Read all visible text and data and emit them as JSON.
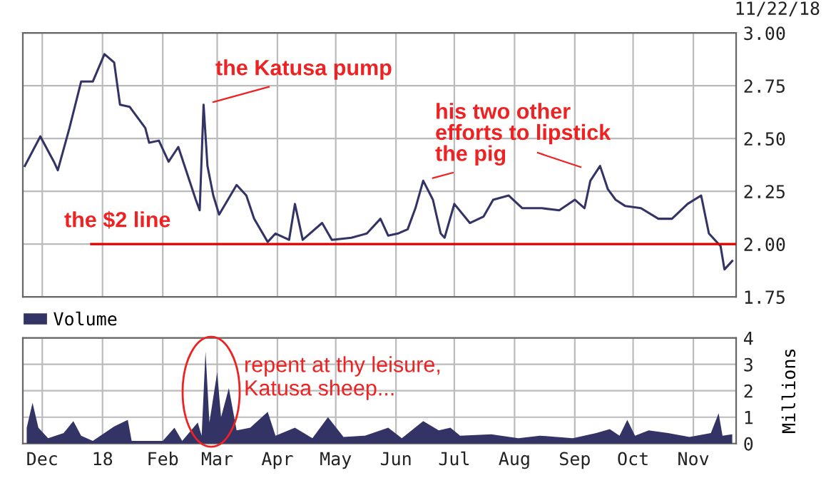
{
  "chart_data": [
    {
      "type": "line",
      "x": [
        "2017-11-22",
        "2017-11-30",
        "2017-12-07",
        "2017-12-09",
        "2017-12-15",
        "2017-12-21",
        "2017-12-27",
        "2018-01-02",
        "2018-01-07",
        "2018-01-10",
        "2018-01-15",
        "2018-01-23",
        "2018-01-25",
        "2018-01-30",
        "2018-02-04",
        "2018-02-09",
        "2018-02-18",
        "2018-02-20",
        "2018-02-22",
        "2018-02-24",
        "2018-02-27",
        "2018-03-02",
        "2018-03-11",
        "2018-03-16",
        "2018-03-20",
        "2018-03-27",
        "2018-03-31",
        "2018-04-07",
        "2018-04-10",
        "2018-04-14",
        "2018-04-24",
        "2018-04-29",
        "2018-05-09",
        "2018-05-17",
        "2018-05-24",
        "2018-05-28",
        "2018-06-02",
        "2018-06-07",
        "2018-06-11",
        "2018-06-15",
        "2018-06-20",
        "2018-06-24",
        "2018-06-26",
        "2018-07-01",
        "2018-07-09",
        "2018-07-16",
        "2018-07-21",
        "2018-07-29",
        "2018-08-05",
        "2018-08-15",
        "2018-08-24",
        "2018-09-01",
        "2018-09-06",
        "2018-09-09",
        "2018-09-14",
        "2018-09-18",
        "2018-09-22",
        "2018-09-27",
        "2018-10-05",
        "2018-10-14",
        "2018-10-21",
        "2018-10-29",
        "2018-11-05",
        "2018-11-09",
        "2018-11-15",
        "2018-11-17",
        "2018-11-21"
      ],
      "series": [
        {
          "color": "#333366",
          "values": [
            2.37,
            2.51,
            2.39,
            2.35,
            2.55,
            2.77,
            2.77,
            2.9,
            2.86,
            2.66,
            2.65,
            2.55,
            2.48,
            2.49,
            2.39,
            2.46,
            2.21,
            2.16,
            2.66,
            2.37,
            2.23,
            2.14,
            2.28,
            2.23,
            2.12,
            2.01,
            2.05,
            2.02,
            2.19,
            2.02,
            2.1,
            2.02,
            2.03,
            2.05,
            2.12,
            2.04,
            2.05,
            2.07,
            2.17,
            2.3,
            2.21,
            2.05,
            2.03,
            2.19,
            2.1,
            2.13,
            2.21,
            2.23,
            2.17,
            2.17,
            2.16,
            2.21,
            2.17,
            2.3,
            2.37,
            2.26,
            2.21,
            2.18,
            2.17,
            2.12,
            2.12,
            2.19,
            2.23,
            2.05,
            1.99,
            1.88,
            1.92
          ]
        }
      ],
      "xlim": [
        "2017-11-21",
        "2018-11-23"
      ],
      "xticks": [
        {
          "value": "2017-12-01",
          "label": null
        },
        {
          "value": "2018-01-01",
          "label": null
        },
        {
          "value": "2018-02-01",
          "label": null
        },
        {
          "value": "2018-03-01",
          "label": null
        },
        {
          "value": "2018-04-01",
          "label": null
        },
        {
          "value": "2018-05-01",
          "label": null
        },
        {
          "value": "2018-06-01",
          "label": null
        },
        {
          "value": "2018-07-01",
          "label": null
        },
        {
          "value": "2018-08-01",
          "label": null
        },
        {
          "value": "2018-09-01",
          "label": null
        },
        {
          "value": "2018-10-01",
          "label": null
        },
        {
          "value": "2018-11-01",
          "label": null
        }
      ],
      "ylim": [
        1.75,
        3.0
      ],
      "yticks": [
        {
          "value": 1.75,
          "label": "1.75"
        },
        {
          "value": 2.0,
          "label": "2.00"
        },
        {
          "value": 2.25,
          "label": "2.25"
        },
        {
          "value": 2.5,
          "label": "2.50"
        },
        {
          "value": 2.75,
          "label": "2.75"
        },
        {
          "value": 3.0,
          "label": "3.00"
        }
      ],
      "tick_labels": "y",
      "grid": true,
      "ref_lines": [
        {
          "axis": "y",
          "value": 2.0,
          "label": "the $2 line",
          "color": "#dd0000"
        }
      ],
      "annotations": [
        {
          "text": "the Katusa pump",
          "x": "2018-02-22",
          "y": 2.66
        },
        {
          "text": "his two other\nefforts to lipstick\nthe pig",
          "x": "2018-06-15",
          "y": 2.3
        },
        "11/22/18"
      ]
    },
    {
      "type": "area",
      "x": [
        "2017-11-23",
        "2017-11-26",
        "2017-11-29",
        "2017-12-04",
        "2017-12-12",
        "2017-12-17",
        "2017-12-21",
        "2017-12-27",
        "2018-01-07",
        "2018-01-14",
        "2018-01-16",
        "2018-02-01",
        "2018-02-07",
        "2018-02-11",
        "2018-02-19",
        "2018-02-21",
        "2018-02-23",
        "2018-02-25",
        "2018-03-01",
        "2018-03-03",
        "2018-03-07",
        "2018-03-11",
        "2018-03-18",
        "2018-03-27",
        "2018-03-31",
        "2018-04-10",
        "2018-04-19",
        "2018-04-27",
        "2018-05-05",
        "2018-05-16",
        "2018-05-28",
        "2018-06-04",
        "2018-06-15",
        "2018-06-23",
        "2018-06-29",
        "2018-07-04",
        "2018-07-20",
        "2018-08-03",
        "2018-08-14",
        "2018-08-31",
        "2018-09-12",
        "2018-09-19",
        "2018-09-24",
        "2018-09-28",
        "2018-10-02",
        "2018-10-09",
        "2018-10-19",
        "2018-10-30",
        "2018-11-10",
        "2018-11-14",
        "2018-11-16",
        "2018-11-21"
      ],
      "series": [
        {
          "name": "Volume",
          "color": "#333366",
          "values": [
            0.6,
            1.55,
            0.6,
            0.2,
            0.4,
            0.85,
            0.3,
            0.1,
            0.65,
            0.9,
            0.1,
            0.1,
            0.6,
            0.1,
            0.8,
            0.3,
            3.5,
            0.8,
            2.7,
            1.0,
            2.1,
            0.5,
            0.6,
            1.2,
            0.3,
            0.6,
            0.2,
            1.0,
            0.25,
            0.3,
            0.6,
            0.2,
            0.85,
            0.5,
            0.6,
            0.3,
            0.35,
            0.2,
            0.3,
            0.2,
            0.4,
            0.55,
            0.3,
            0.9,
            0.3,
            0.5,
            0.4,
            0.25,
            0.4,
            1.15,
            0.3,
            0.35
          ]
        }
      ],
      "xlim": [
        "2017-11-21",
        "2018-11-23"
      ],
      "xticks": [
        {
          "value": "2017-12-01",
          "label": "Dec"
        },
        {
          "value": "2018-01-01",
          "label": "18"
        },
        {
          "value": "2018-02-01",
          "label": "Feb"
        },
        {
          "value": "2018-03-01",
          "label": "Mar"
        },
        {
          "value": "2018-04-01",
          "label": "Apr"
        },
        {
          "value": "2018-05-01",
          "label": "May"
        },
        {
          "value": "2018-06-01",
          "label": "Jun"
        },
        {
          "value": "2018-07-01",
          "label": "Jul"
        },
        {
          "value": "2018-08-01",
          "label": "Aug"
        },
        {
          "value": "2018-09-01",
          "label": "Sep"
        },
        {
          "value": "2018-10-01",
          "label": "Oct"
        },
        {
          "value": "2018-11-01",
          "label": "Nov"
        }
      ],
      "ylim": [
        0,
        4
      ],
      "yticks": [
        0,
        1,
        2,
        3,
        4
      ],
      "ylabel": "Millions",
      "grid": true,
      "legend": "top left",
      "annotations": [
        "repent at thy leisure,\nKatusa sheep..."
      ]
    }
  ]
}
